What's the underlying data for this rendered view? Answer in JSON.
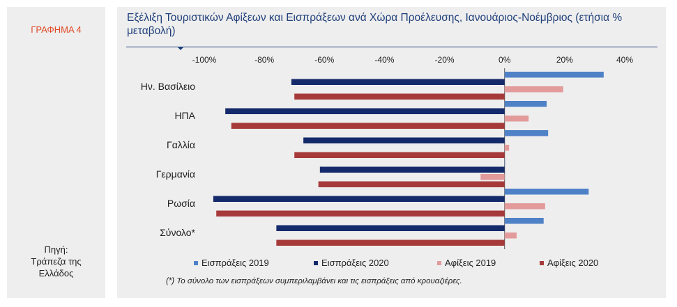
{
  "figure_label": "ΓΡΑΦΗΜΑ 4",
  "source": {
    "heading": "Πηγή:",
    "line1": "Τράπεζα της",
    "line2": "Ελλάδος"
  },
  "title": "Εξέλιξη Τουριστικών Αφίξεων και Εισπράξεων ανά Χώρα Προέλευσης, Ιανουάριος-Νοέμβριος (ετήσια % μεταβολή)",
  "footnote": "(*) Το σύνολο των εισπράξεων συμπεριλαμβάνει και τις εισπράξεις από κρουαζιέρες.",
  "colors": {
    "receipts_2019": "#4f81c7",
    "receipts_2020": "#142a6b",
    "arrivals_2019": "#e39a9a",
    "arrivals_2020": "#a63a3a"
  },
  "chart_data": {
    "type": "bar",
    "orientation": "horizontal",
    "categories": [
      "Ην. Βασίλειο",
      "ΗΠΑ",
      "Γαλλία",
      "Γερμανία",
      "Ρωσία",
      "Σύνολο*"
    ],
    "x_ticks": [
      "-100%",
      "-80%",
      "-60%",
      "-40%",
      "-20%",
      "0%",
      "20%",
      "40%"
    ],
    "xlim": [
      -100,
      40
    ],
    "unit": "%",
    "series": [
      {
        "name": "Εισπράξεις 2019",
        "color": "#4f81c7",
        "values": [
          33,
          14,
          14.5,
          0,
          28,
          13
        ]
      },
      {
        "name": "Εισπράξεις 2020",
        "color": "#142a6b",
        "values": [
          -71,
          -93,
          -67,
          -61.5,
          -97,
          -76
        ]
      },
      {
        "name": "Αφίξεις 2019",
        "color": "#e39a9a",
        "values": [
          19.5,
          8,
          1.5,
          -8,
          13.5,
          4
        ]
      },
      {
        "name": "Αφίξεις 2020",
        "color": "#a63a3a",
        "values": [
          -70,
          -91,
          -70,
          -62,
          -96,
          -76
        ]
      }
    ],
    "legend_position": "bottom",
    "grid": false
  }
}
